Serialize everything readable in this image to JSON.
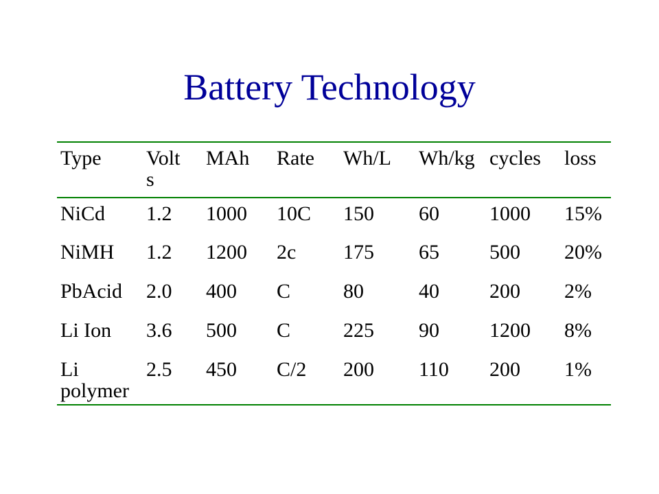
{
  "title": "Battery Technology",
  "table": {
    "header": [
      "Type",
      "Volts",
      "MAh",
      "Rate",
      "Wh/L",
      "Wh/kg",
      "cycles",
      "loss"
    ],
    "rows": [
      [
        "NiCd",
        "1.2",
        "1000",
        "10C",
        "150",
        "60",
        "1000",
        "15%"
      ],
      [
        "NiMH",
        "1.2",
        "1200",
        "2c",
        "175",
        "65",
        "500",
        "20%"
      ],
      [
        "PbAcid",
        "2.0",
        "400",
        "C",
        "80",
        "40",
        "200",
        "2%"
      ],
      [
        "Li Ion",
        "3.6",
        "500",
        "C",
        "225",
        "90",
        "1200",
        "8%"
      ],
      [
        "Li polymer",
        "2.5",
        "450",
        "C/2",
        "200",
        "110",
        "200",
        "1%"
      ]
    ]
  }
}
